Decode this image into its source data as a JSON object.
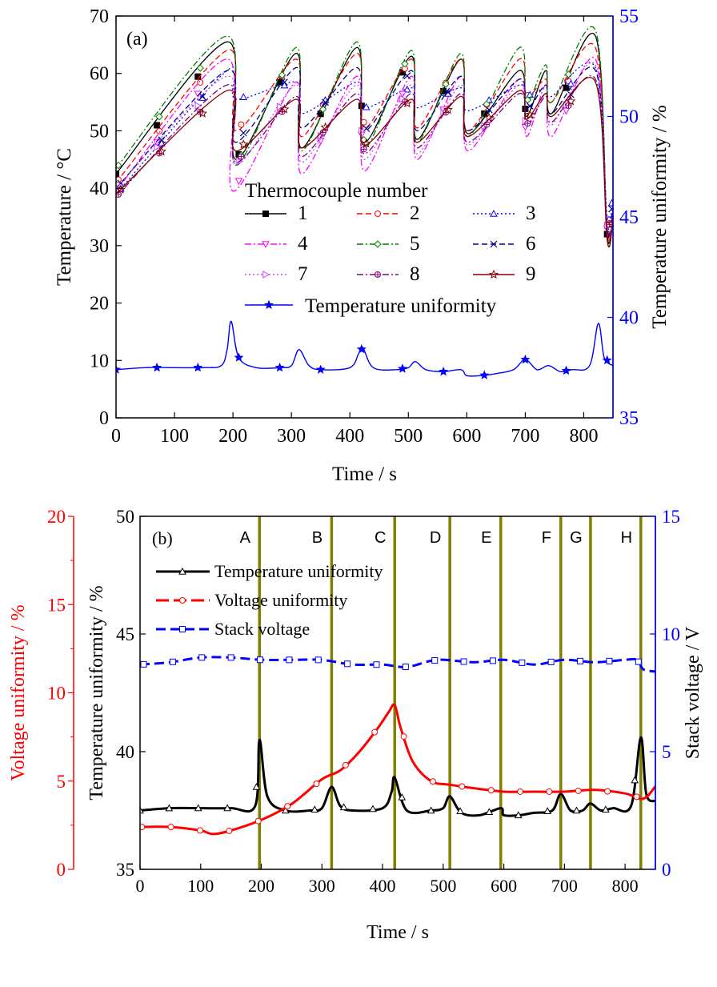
{
  "chart_data": [
    {
      "type": "line",
      "panel_label": "(a)",
      "xlabel": "Time / s",
      "ylabel": "Temperature / °C",
      "y2label": "Temperature uniformity / %",
      "xlim": [
        0,
        850
      ],
      "ylim": [
        0,
        70
      ],
      "y2lim": [
        35,
        55
      ],
      "xticks": [
        0,
        100,
        200,
        300,
        400,
        500,
        600,
        700,
        800
      ],
      "yticks": [
        0,
        10,
        20,
        30,
        40,
        50,
        60,
        70
      ],
      "y2ticks": [
        35,
        40,
        45,
        50,
        55
      ],
      "legend_title": "Thermocouple number",
      "legend_position": "center",
      "grid": false,
      "series": [
        {
          "name": "1",
          "axis": "left",
          "color": "#000000",
          "dash": "solid",
          "marker": "square-filled",
          "x": [
            0,
            190,
            205,
            308,
            318,
            412,
            425,
            505,
            515,
            590,
            602,
            690,
            702,
            735,
            745,
            820,
            840,
            850
          ],
          "y": [
            42.5,
            65.5,
            45.0,
            63.5,
            47.0,
            64.5,
            48.0,
            63.0,
            48.5,
            62.5,
            49.5,
            60.5,
            52.5,
            60.5,
            53.0,
            66.5,
            32.0,
            36.0
          ]
        },
        {
          "name": "2",
          "axis": "left",
          "color": "#ff0000",
          "dash": "dash",
          "marker": "circle-open",
          "x": [
            0,
            190,
            205,
            308,
            318,
            412,
            425,
            505,
            515,
            590,
            602,
            690,
            702,
            735,
            745,
            820,
            840,
            850
          ],
          "y": [
            41.0,
            64.0,
            50.0,
            62.5,
            49.0,
            63.5,
            50.5,
            62.5,
            50.5,
            62.5,
            50.0,
            62.5,
            56.0,
            59.0,
            55.0,
            64.5,
            32.5,
            36.0
          ]
        },
        {
          "name": "3",
          "axis": "left",
          "color": "#0000ff",
          "dash": "dot",
          "marker": "triangle-up-open",
          "x": [
            0,
            190,
            205,
            308,
            318,
            412,
            425,
            505,
            515,
            590,
            602,
            690,
            702,
            735,
            745,
            820,
            840,
            850
          ],
          "y": [
            39.0,
            60.5,
            55.5,
            58.5,
            53.0,
            58.5,
            54.0,
            57.5,
            54.0,
            57.5,
            53.5,
            58.0,
            56.0,
            57.5,
            56.0,
            61.0,
            35.0,
            38.0
          ]
        },
        {
          "name": "4",
          "axis": "left",
          "color": "#ff00ff",
          "dash": "dashdot",
          "marker": "triangle-down-open",
          "x": [
            0,
            190,
            200,
            308,
            318,
            412,
            425,
            505,
            515,
            590,
            602,
            690,
            702,
            735,
            745,
            820,
            840,
            850
          ],
          "y": [
            39.5,
            62.5,
            39.5,
            58.5,
            42.5,
            59.5,
            43.0,
            59.5,
            45.0,
            59.5,
            46.5,
            59.0,
            49.0,
            58.0,
            49.0,
            62.5,
            33.0,
            36.0
          ]
        },
        {
          "name": "5",
          "axis": "left",
          "color": "#008000",
          "dash": "dashdot",
          "marker": "diamond-open",
          "x": [
            0,
            190,
            205,
            308,
            318,
            412,
            425,
            505,
            515,
            590,
            602,
            690,
            702,
            735,
            745,
            820,
            840,
            850
          ],
          "y": [
            43.5,
            66.5,
            44.0,
            64.5,
            46.5,
            65.5,
            47.0,
            64.0,
            48.0,
            63.5,
            49.0,
            64.5,
            55.0,
            61.5,
            55.0,
            67.5,
            31.5,
            35.0
          ]
        },
        {
          "name": "6",
          "axis": "left",
          "color": "#000080",
          "dash": "dash",
          "marker": "x",
          "x": [
            0,
            190,
            205,
            308,
            318,
            412,
            425,
            505,
            515,
            590,
            602,
            690,
            702,
            735,
            745,
            820,
            840,
            850
          ],
          "y": [
            40.0,
            60.5,
            48.0,
            61.0,
            50.5,
            61.0,
            50.0,
            60.5,
            50.0,
            59.5,
            50.0,
            59.0,
            53.5,
            58.0,
            53.0,
            60.5,
            34.0,
            37.0
          ]
        },
        {
          "name": "7",
          "axis": "left",
          "color": "#cc44ff",
          "dash": "dot",
          "marker": "triangle-right-open",
          "x": [
            0,
            190,
            205,
            308,
            318,
            412,
            425,
            505,
            515,
            590,
            602,
            690,
            702,
            735,
            745,
            820,
            840,
            850
          ],
          "y": [
            40.0,
            59.5,
            44.0,
            58.0,
            44.5,
            58.0,
            45.0,
            58.0,
            46.0,
            58.0,
            47.5,
            58.0,
            50.5,
            56.5,
            51.0,
            61.5,
            33.5,
            37.0
          ]
        },
        {
          "name": "8",
          "axis": "left",
          "color": "#800080",
          "dash": "dashdot",
          "marker": "circle-cross",
          "x": [
            0,
            190,
            205,
            308,
            318,
            412,
            425,
            505,
            515,
            590,
            602,
            690,
            702,
            735,
            745,
            820,
            840,
            850
          ],
          "y": [
            38.5,
            58.0,
            44.5,
            56.0,
            45.5,
            56.5,
            46.0,
            56.5,
            47.0,
            56.5,
            48.0,
            56.5,
            51.0,
            56.0,
            51.5,
            59.0,
            32.5,
            35.5
          ]
        },
        {
          "name": "9",
          "axis": "left",
          "color": "#800000",
          "dash": "solid",
          "marker": "star",
          "x": [
            0,
            190,
            205,
            308,
            318,
            412,
            425,
            505,
            515,
            590,
            602,
            690,
            702,
            735,
            745,
            820,
            840,
            850
          ],
          "y": [
            39.0,
            57.0,
            46.5,
            55.5,
            47.0,
            55.5,
            47.5,
            55.5,
            48.0,
            56.0,
            49.0,
            57.0,
            52.0,
            56.5,
            52.5,
            58.5,
            31.0,
            34.5
          ]
        },
        {
          "name": "Temperature uniformity",
          "axis": "right",
          "color": "#0000ff",
          "dash": "solid",
          "marker": "star-filled",
          "x": [
            0,
            50,
            100,
            150,
            180,
            190,
            197,
            210,
            240,
            280,
            300,
            313,
            330,
            350,
            400,
            415,
            422,
            440,
            480,
            500,
            512,
            530,
            560,
            590,
            600,
            625,
            650,
            680,
            700,
            720,
            740,
            760,
            780,
            810,
            825,
            835,
            850
          ],
          "y": [
            37.4,
            37.5,
            37.5,
            37.5,
            37.6,
            38.4,
            39.8,
            38.0,
            37.5,
            37.5,
            37.6,
            38.4,
            37.6,
            37.4,
            37.5,
            38.2,
            38.5,
            37.5,
            37.4,
            37.5,
            37.8,
            37.4,
            37.3,
            37.4,
            37.1,
            37.1,
            37.2,
            37.4,
            37.9,
            37.4,
            37.6,
            37.3,
            37.4,
            37.6,
            39.7,
            38.0,
            37.6
          ]
        }
      ]
    },
    {
      "type": "line",
      "panel_label": "(b)",
      "xlabel": "Time / s",
      "ylabel": "Temperature uniformity / %",
      "y2label": "Stack voltage / V",
      "y3label": "Voltage uniformity / %",
      "xlim": [
        0,
        850
      ],
      "ylim": [
        35,
        50
      ],
      "y2lim": [
        0,
        15
      ],
      "y3lim": [
        0,
        20
      ],
      "xticks": [
        0,
        100,
        200,
        300,
        400,
        500,
        600,
        700,
        800
      ],
      "yticks": [
        35,
        40,
        45,
        50
      ],
      "y2ticks": [
        0,
        5,
        10,
        15
      ],
      "y3ticks": [
        0,
        5,
        10,
        15,
        20
      ],
      "legend_position": "top-left",
      "grid": false,
      "events": [
        {
          "label": "A",
          "x": 197
        },
        {
          "label": "B",
          "x": 316
        },
        {
          "label": "C",
          "x": 420
        },
        {
          "label": "D",
          "x": 511
        },
        {
          "label": "E",
          "x": 595
        },
        {
          "label": "F",
          "x": 694
        },
        {
          "label": "G",
          "x": 743
        },
        {
          "label": "H",
          "x": 826
        }
      ],
      "series": [
        {
          "name": "Temperature uniformity",
          "axis": "left",
          "color": "#000000",
          "marker": "triangle-up-open",
          "x": [
            0,
            50,
            100,
            150,
            190,
            197,
            210,
            240,
            280,
            300,
            316,
            330,
            350,
            400,
            415,
            420,
            440,
            480,
            500,
            511,
            530,
            560,
            595,
            600,
            625,
            650,
            680,
            694,
            710,
            730,
            743,
            760,
            780,
            810,
            826,
            835,
            850
          ],
          "y": [
            37.5,
            37.6,
            37.6,
            37.6,
            37.7,
            40.5,
            38.1,
            37.5,
            37.5,
            37.6,
            38.5,
            37.7,
            37.5,
            37.6,
            38.3,
            38.9,
            37.5,
            37.5,
            37.6,
            38.1,
            37.4,
            37.3,
            37.6,
            37.3,
            37.3,
            37.4,
            37.5,
            38.2,
            37.5,
            37.5,
            37.8,
            37.5,
            37.6,
            37.7,
            40.6,
            38.2,
            37.9
          ]
        },
        {
          "name": "Voltage uniformity",
          "axis": "y3",
          "color": "#ff0000",
          "marker": "circle-open",
          "x": [
            0,
            50,
            100,
            120,
            150,
            200,
            250,
            300,
            330,
            360,
            390,
            410,
            420,
            430,
            450,
            480,
            510,
            550,
            600,
            650,
            700,
            750,
            800,
            830,
            850
          ],
          "y": [
            2.4,
            2.4,
            2.2,
            2.0,
            2.2,
            2.8,
            3.7,
            5.1,
            5.6,
            6.6,
            7.9,
            8.9,
            9.3,
            8.0,
            6.1,
            5.0,
            4.8,
            4.6,
            4.4,
            4.4,
            4.4,
            4.5,
            4.3,
            4.0,
            4.7
          ]
        },
        {
          "name": "Stack voltage",
          "axis": "right",
          "color": "#0000ff",
          "marker": "square-open",
          "x": [
            0,
            50,
            100,
            150,
            200,
            250,
            300,
            350,
            400,
            440,
            490,
            550,
            600,
            650,
            700,
            750,
            800,
            820,
            830,
            850
          ],
          "y": [
            8.7,
            8.8,
            9.0,
            9.0,
            8.9,
            8.9,
            8.9,
            8.7,
            8.7,
            8.6,
            8.9,
            8.8,
            8.9,
            8.7,
            8.9,
            8.8,
            8.9,
            8.9,
            8.5,
            8.4
          ]
        }
      ]
    }
  ]
}
